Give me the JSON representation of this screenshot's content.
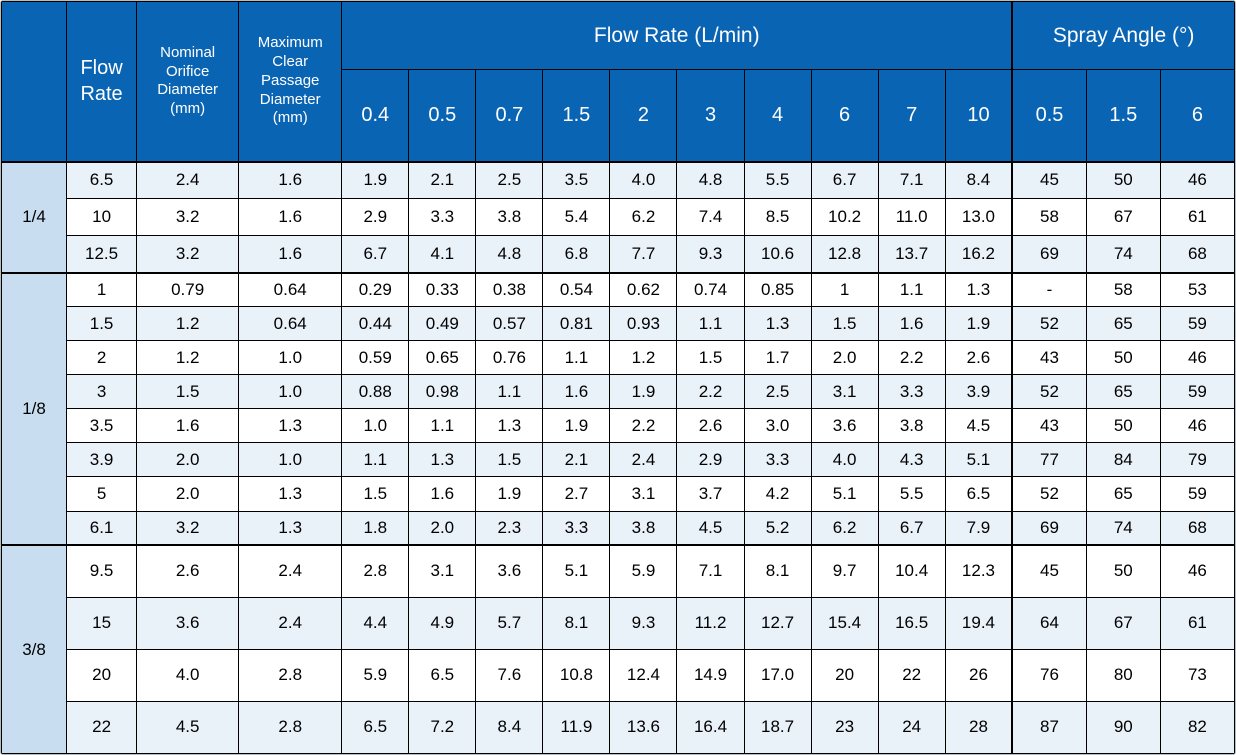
{
  "table": {
    "colors": {
      "header_bg": "#0a64b4",
      "header_text": "#ffffff",
      "group_cell_bg": "#c8ddf0",
      "row_alt_bg": "#e9f1f9",
      "row_bg": "#ffffff"
    },
    "columns": {
      "corner_label": "",
      "flow_rate_label": "Flow Rate",
      "orifice_label": "Nominal Orifice Diameter (mm)",
      "passage_label": "Maximum Clear Passage Diameter (mm)",
      "flow_group_label": "Flow Rate (L/min)",
      "spray_group_label": "Spray Angle (°)",
      "flow_pressures": [
        "0.4",
        "0.5",
        "0.7",
        "1.5",
        "2",
        "3",
        "4",
        "6",
        "7",
        "10"
      ],
      "spray_pressures": [
        "0.5",
        "1.5",
        "6"
      ]
    },
    "groups": [
      {
        "label": "1/4",
        "rows": [
          {
            "flow_rate": "6.5",
            "orifice": "2.4",
            "passage": "1.6",
            "flows": [
              "1.9",
              "2.1",
              "2.5",
              "3.5",
              "4.0",
              "4.8",
              "5.5",
              "6.7",
              "7.1",
              "8.4"
            ],
            "angles": [
              "45",
              "50",
              "46"
            ]
          },
          {
            "flow_rate": "10",
            "orifice": "3.2",
            "passage": "1.6",
            "flows": [
              "2.9",
              "3.3",
              "3.8",
              "5.4",
              "6.2",
              "7.4",
              "8.5",
              "10.2",
              "11.0",
              "13.0"
            ],
            "angles": [
              "58",
              "67",
              "61"
            ]
          },
          {
            "flow_rate": "12.5",
            "orifice": "3.2",
            "passage": "1.6",
            "flows": [
              "6.7",
              "4.1",
              "4.8",
              "6.8",
              "7.7",
              "9.3",
              "10.6",
              "12.8",
              "13.7",
              "16.2"
            ],
            "angles": [
              "69",
              "74",
              "68"
            ]
          }
        ]
      },
      {
        "label": "1/8",
        "rows": [
          {
            "flow_rate": "1",
            "orifice": "0.79",
            "passage": "0.64",
            "flows": [
              "0.29",
              "0.33",
              "0.38",
              "0.54",
              "0.62",
              "0.74",
              "0.85",
              "1",
              "1.1",
              "1.3"
            ],
            "angles": [
              "-",
              "58",
              "53"
            ]
          },
          {
            "flow_rate": "1.5",
            "orifice": "1.2",
            "passage": "0.64",
            "flows": [
              "0.44",
              "0.49",
              "0.57",
              "0.81",
              "0.93",
              "1.1",
              "1.3",
              "1.5",
              "1.6",
              "1.9"
            ],
            "angles": [
              "52",
              "65",
              "59"
            ]
          },
          {
            "flow_rate": "2",
            "orifice": "1.2",
            "passage": "1.0",
            "flows": [
              "0.59",
              "0.65",
              "0.76",
              "1.1",
              "1.2",
              "1.5",
              "1.7",
              "2.0",
              "2.2",
              "2.6"
            ],
            "angles": [
              "43",
              "50",
              "46"
            ]
          },
          {
            "flow_rate": "3",
            "orifice": "1.5",
            "passage": "1.0",
            "flows": [
              "0.88",
              "0.98",
              "1.1",
              "1.6",
              "1.9",
              "2.2",
              "2.5",
              "3.1",
              "3.3",
              "3.9"
            ],
            "angles": [
              "52",
              "65",
              "59"
            ]
          },
          {
            "flow_rate": "3.5",
            "orifice": "1.6",
            "passage": "1.3",
            "flows": [
              "1.0",
              "1.1",
              "1.3",
              "1.9",
              "2.2",
              "2.6",
              "3.0",
              "3.6",
              "3.8",
              "4.5"
            ],
            "angles": [
              "43",
              "50",
              "46"
            ]
          },
          {
            "flow_rate": "3.9",
            "orifice": "2.0",
            "passage": "1.0",
            "flows": [
              "1.1",
              "1.3",
              "1.5",
              "2.1",
              "2.4",
              "2.9",
              "3.3",
              "4.0",
              "4.3",
              "5.1"
            ],
            "angles": [
              "77",
              "84",
              "79"
            ]
          },
          {
            "flow_rate": "5",
            "orifice": "2.0",
            "passage": "1.3",
            "flows": [
              "1.5",
              "1.6",
              "1.9",
              "2.7",
              "3.1",
              "3.7",
              "4.2",
              "5.1",
              "5.5",
              "6.5"
            ],
            "angles": [
              "52",
              "65",
              "59"
            ]
          },
          {
            "flow_rate": "6.1",
            "orifice": "3.2",
            "passage": "1.3",
            "flows": [
              "1.8",
              "2.0",
              "2.3",
              "3.3",
              "3.8",
              "4.5",
              "5.2",
              "6.2",
              "6.7",
              "7.9"
            ],
            "angles": [
              "69",
              "74",
              "68"
            ]
          }
        ]
      },
      {
        "label": "3/8",
        "rows": [
          {
            "flow_rate": "9.5",
            "orifice": "2.6",
            "passage": "2.4",
            "flows": [
              "2.8",
              "3.1",
              "3.6",
              "5.1",
              "5.9",
              "7.1",
              "8.1",
              "9.7",
              "10.4",
              "12.3"
            ],
            "angles": [
              "45",
              "50",
              "46"
            ]
          },
          {
            "flow_rate": "15",
            "orifice": "3.6",
            "passage": "2.4",
            "flows": [
              "4.4",
              "4.9",
              "5.7",
              "8.1",
              "9.3",
              "11.2",
              "12.7",
              "15.4",
              "16.5",
              "19.4"
            ],
            "angles": [
              "64",
              "67",
              "61"
            ]
          },
          {
            "flow_rate": "20",
            "orifice": "4.0",
            "passage": "2.8",
            "flows": [
              "5.9",
              "6.5",
              "7.6",
              "10.8",
              "12.4",
              "14.9",
              "17.0",
              "20",
              "22",
              "26"
            ],
            "angles": [
              "76",
              "80",
              "73"
            ]
          },
          {
            "flow_rate": "22",
            "orifice": "4.5",
            "passage": "2.8",
            "flows": [
              "6.5",
              "7.2",
              "8.4",
              "11.9",
              "13.6",
              "16.4",
              "18.7",
              "23",
              "24",
              "28"
            ],
            "angles": [
              "87",
              "90",
              "82"
            ]
          }
        ]
      }
    ]
  }
}
